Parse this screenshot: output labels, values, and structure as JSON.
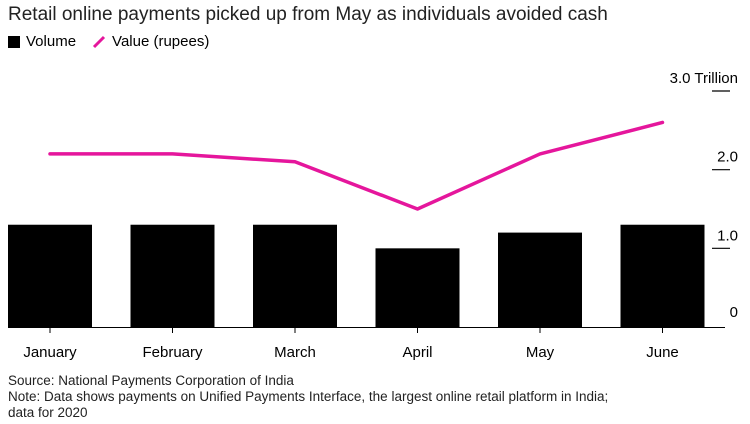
{
  "title": "Retail online payments picked up from May as individuals avoided cash",
  "legend": {
    "volume_label": "Volume",
    "value_label": "Value (rupees)"
  },
  "colors": {
    "volume": "#000000",
    "value": "#e5169c",
    "grid": "#000000"
  },
  "footer": {
    "source": "Source: National Payments Corporation of India",
    "note_line1": "Note: Data shows payments on Unified Payments Interface, the largest online retail platform in India;",
    "note_line2": "data for 2020"
  },
  "chart_data": {
    "type": "bar",
    "categories": [
      "January",
      "February",
      "March",
      "April",
      "May",
      "June"
    ],
    "series": [
      {
        "name": "Volume",
        "type": "bar",
        "values": [
          1.3,
          1.3,
          1.3,
          1.0,
          1.2,
          1.3
        ]
      },
      {
        "name": "Value (rupees)",
        "type": "line",
        "values": [
          2.2,
          2.2,
          2.1,
          1.5,
          2.2,
          2.6
        ]
      }
    ],
    "yticks": [
      {
        "value": 3.0,
        "label": "3.0 Trillion"
      },
      {
        "value": 2.0,
        "label": "2.0"
      },
      {
        "value": 1.0,
        "label": "1.0"
      },
      {
        "value": 0,
        "label": "0"
      }
    ],
    "ylim": [
      0,
      3.2
    ],
    "axis_position": "right",
    "grid": false,
    "legend_position": "top-left"
  }
}
